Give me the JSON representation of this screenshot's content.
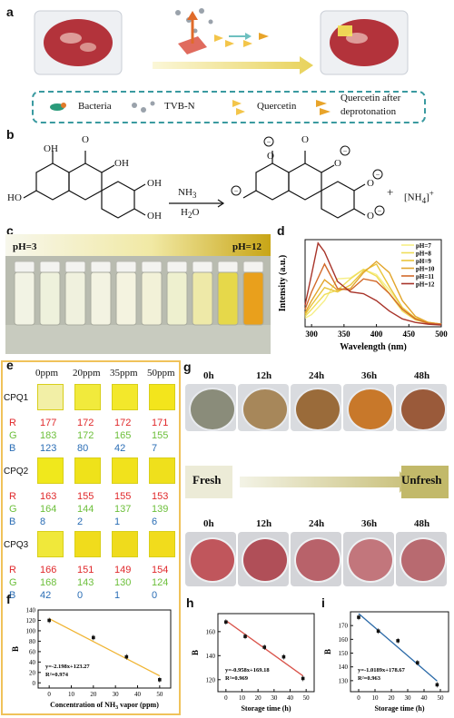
{
  "panel_a": {
    "label": "a",
    "legend": [
      "Bacteria",
      "TVB-N",
      "Quercetin",
      "Quercetin after",
      "deprotonation"
    ]
  },
  "panel_b": {
    "label": "b",
    "reagents": [
      "NH",
      "H",
      "O"
    ],
    "plus": "+",
    "product": "[NH",
    "atoms": [
      "OH",
      "HO",
      "OH",
      "OH",
      "O",
      "O",
      "O"
    ],
    "anion_atoms": [
      "O",
      "O",
      "O",
      "O",
      "O"
    ]
  },
  "panel_c": {
    "label": "c",
    "ph_low": "pH=3",
    "ph_high": "pH=12"
  },
  "panel_d": {
    "label": "d"
  },
  "panel_e": {
    "label": "e",
    "columns": [
      "0ppm",
      "20ppm",
      "35ppm",
      "50ppm"
    ],
    "groups": [
      {
        "name": "CPQ1",
        "R": [
          177,
          172,
          172,
          171
        ],
        "G": [
          183,
          172,
          165,
          155
        ],
        "B": [
          123,
          80,
          42,
          7
        ]
      },
      {
        "name": "CPQ2",
        "R": [
          163,
          155,
          155,
          153
        ],
        "G": [
          164,
          144,
          137,
          139
        ],
        "B": [
          8,
          2,
          1,
          6
        ]
      },
      {
        "name": "CPQ3",
        "R": [
          166,
          151,
          149,
          154
        ],
        "G": [
          168,
          143,
          130,
          124
        ],
        "B": [
          42,
          0,
          1,
          0
        ]
      }
    ],
    "swatch_colors": [
      [
        "#f2efa6",
        "#f1ea3c",
        "#f3e82b",
        "#f3e51c"
      ],
      [
        "#f0e81c",
        "#efe21a",
        "#f1e21c",
        "#efe01c"
      ],
      [
        "#f0e83a",
        "#f0dc1c",
        "#efdb1c",
        "#f1dc1c"
      ]
    ]
  },
  "panel_g": {
    "label": "g",
    "times": [
      "0h",
      "12h",
      "24h",
      "36h",
      "48h"
    ],
    "fresh": "Fresh",
    "unfresh": "Unfresh"
  },
  "panel_h": {
    "label": "h"
  },
  "panel_i": {
    "label": "i"
  },
  "chart_data": [
    {
      "id": "d",
      "type": "line",
      "xlabel": "Wavelength (nm)",
      "ylabel": "Intensity (a.u.)",
      "xlim": [
        290,
        500
      ],
      "xticks": [
        300,
        350,
        400,
        450,
        500
      ],
      "series": [
        {
          "name": "pH=7",
          "color": "#f6ee86",
          "x": [
            290,
            300,
            320,
            340,
            360,
            380,
            400,
            420,
            440,
            460,
            480,
            500
          ],
          "y": [
            0.1,
            0.14,
            0.3,
            0.55,
            0.56,
            0.66,
            0.6,
            0.42,
            0.22,
            0.1,
            0.05,
            0.03
          ]
        },
        {
          "name": "pH=8",
          "color": "#f0de5a",
          "x": [
            290,
            300,
            320,
            340,
            360,
            380,
            400,
            420,
            440,
            460,
            480,
            500
          ],
          "y": [
            0.12,
            0.2,
            0.37,
            0.42,
            0.55,
            0.66,
            0.58,
            0.38,
            0.18,
            0.08,
            0.04,
            0.03
          ]
        },
        {
          "name": "pH=9",
          "color": "#e9c53a",
          "x": [
            290,
            300,
            320,
            340,
            360,
            380,
            400,
            420,
            440,
            460,
            480,
            500
          ],
          "y": [
            0.14,
            0.25,
            0.45,
            0.4,
            0.48,
            0.64,
            0.72,
            0.46,
            0.22,
            0.1,
            0.05,
            0.03
          ]
        },
        {
          "name": "pH=10",
          "color": "#e2a52c",
          "x": [
            290,
            300,
            320,
            340,
            360,
            380,
            400,
            420,
            440,
            460,
            480,
            500
          ],
          "y": [
            0.16,
            0.3,
            0.54,
            0.42,
            0.44,
            0.62,
            0.75,
            0.62,
            0.3,
            0.12,
            0.05,
            0.03
          ]
        },
        {
          "name": "pH=11",
          "color": "#d2692a",
          "x": [
            290,
            300,
            320,
            340,
            360,
            380,
            400,
            420,
            440,
            460,
            480,
            500
          ],
          "y": [
            0.2,
            0.4,
            0.72,
            0.44,
            0.42,
            0.55,
            0.52,
            0.38,
            0.2,
            0.09,
            0.04,
            0.03
          ]
        },
        {
          "name": "pH=12",
          "color": "#a8342a",
          "x": [
            290,
            300,
            310,
            320,
            340,
            360,
            380,
            400,
            420,
            440,
            460,
            480,
            500
          ],
          "y": [
            0.25,
            0.6,
            0.96,
            0.86,
            0.52,
            0.4,
            0.38,
            0.3,
            0.18,
            0.09,
            0.05,
            0.03,
            0.02
          ]
        }
      ]
    },
    {
      "id": "f",
      "type": "scatter",
      "xlabel": "Concentration of NH",
      "xlabel_sub": "3",
      "xlabel_tail": " vapor (ppm)",
      "ylabel": "B",
      "xlim": [
        -5,
        55
      ],
      "ylim": [
        -10,
        140
      ],
      "xticks": [
        0,
        10,
        20,
        30,
        40,
        50
      ],
      "yticks": [
        0,
        20,
        40,
        60,
        80,
        100,
        120,
        140
      ],
      "x": [
        0,
        20,
        35,
        50
      ],
      "y": [
        120,
        87,
        50,
        6
      ],
      "fit": {
        "slope": -2.198,
        "intercept": 123.27
      },
      "fit_color": "#f0b431",
      "equation": "y=-2.198x+123.27",
      "r2": "R²=0.974"
    },
    {
      "id": "h",
      "type": "scatter",
      "xlabel": "Storage time (h)",
      "ylabel": "B",
      "xlim": [
        -5,
        55
      ],
      "ylim": [
        110,
        175
      ],
      "xticks": [
        0,
        10,
        20,
        30,
        40,
        50
      ],
      "yticks": [
        120,
        140,
        160
      ],
      "x": [
        0,
        12,
        24,
        36,
        48
      ],
      "y": [
        168,
        156,
        147,
        139,
        121
      ],
      "fit": {
        "slope": -0.958,
        "intercept": 169.18
      },
      "fit_color": "#d9534a",
      "equation": "y=-0.958x+169.18",
      "r2": "R²=0.969"
    },
    {
      "id": "i",
      "type": "scatter",
      "xlabel": "Storage time (h)",
      "ylabel": "B",
      "xlim": [
        -5,
        55
      ],
      "ylim": [
        122,
        180
      ],
      "xticks": [
        0,
        10,
        20,
        30,
        40,
        50
      ],
      "yticks": [
        130,
        140,
        150,
        160,
        170
      ],
      "x": [
        0,
        12,
        24,
        36,
        48
      ],
      "y": [
        176,
        166,
        159,
        143,
        127
      ],
      "fit": {
        "slope": -1.0189,
        "intercept": 178.67
      },
      "fit_color": "#2b6aa8",
      "equation": "y=-1.0189x+178.67",
      "r2": "R²=0.963"
    }
  ]
}
